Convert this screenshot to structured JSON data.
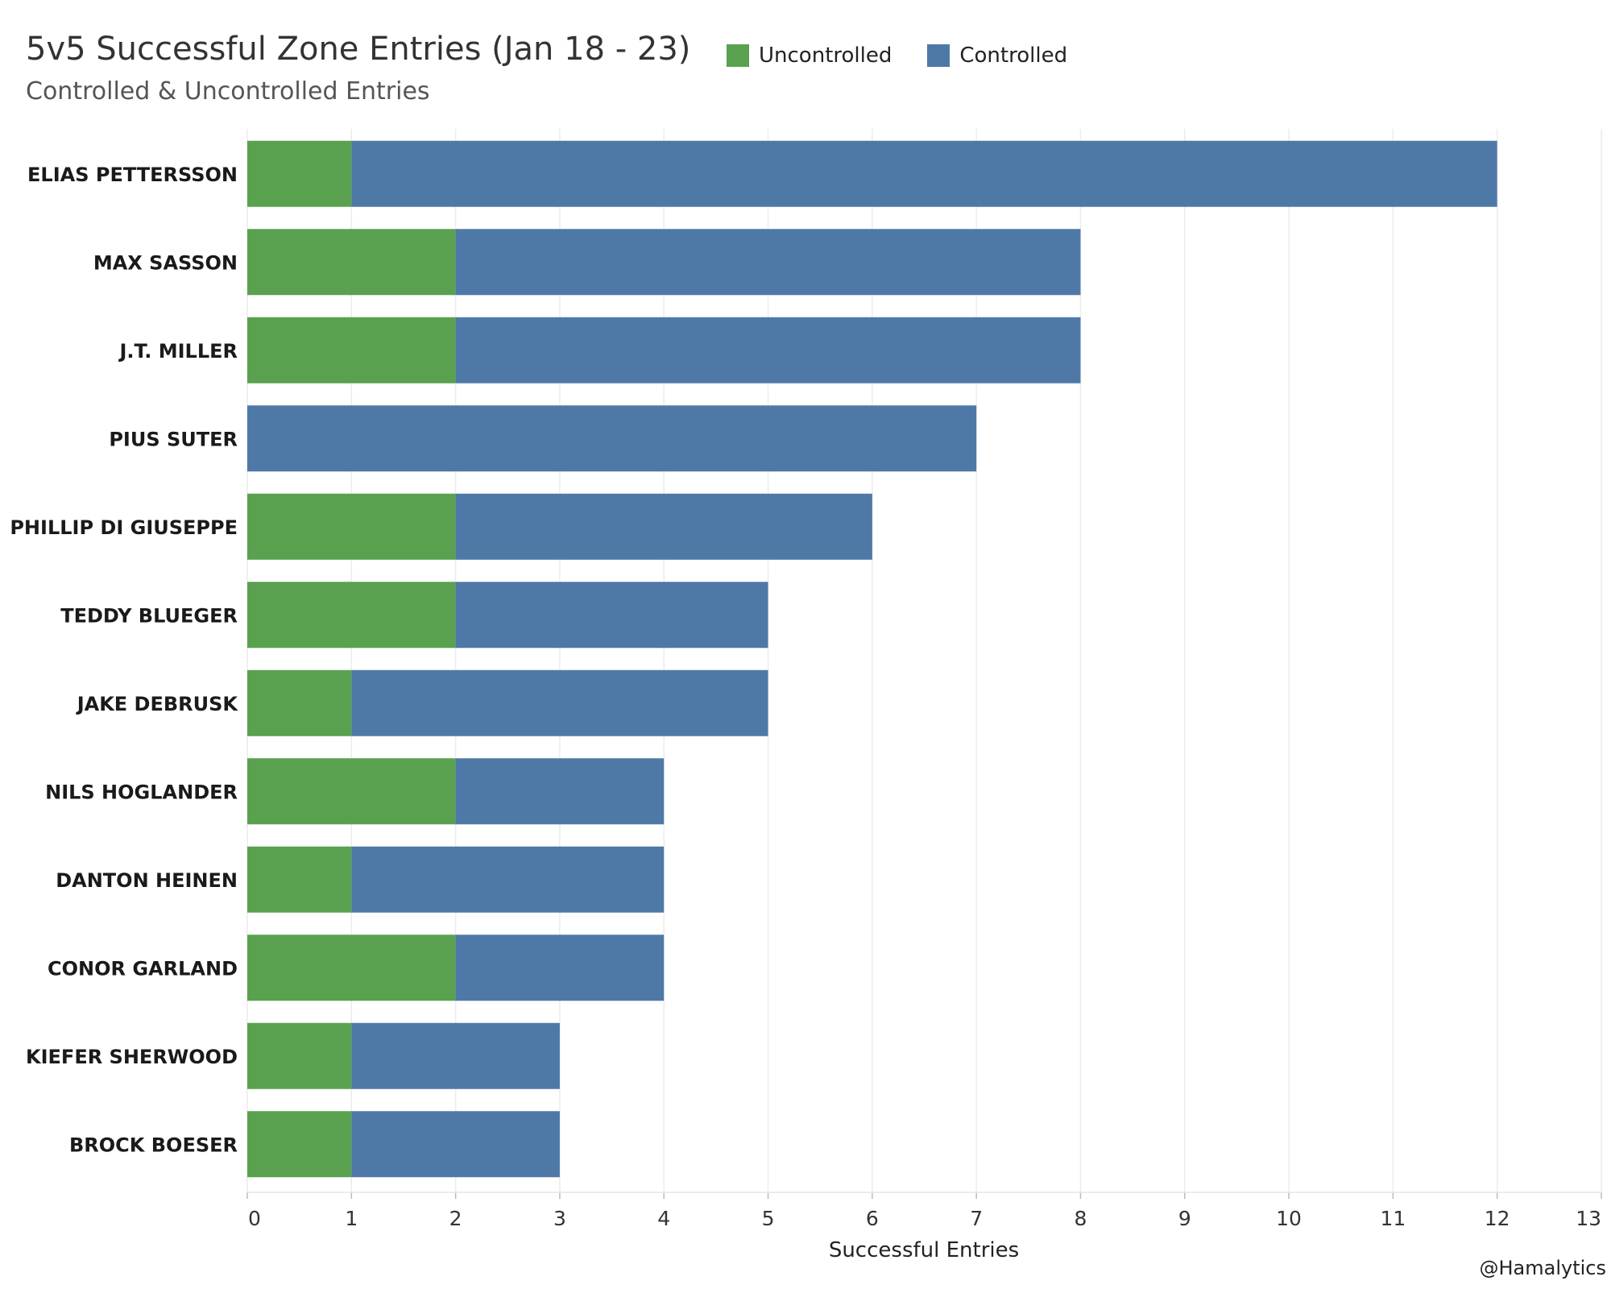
{
  "chart_data": {
    "type": "bar",
    "orientation": "horizontal",
    "stacked": true,
    "title": "5v5 Successful Zone Entries (Jan 18 - 23)",
    "subtitle": "Controlled & Uncontrolled Entries",
    "xlabel": "Successful Entries",
    "ylabel": "",
    "xlim": [
      0,
      13
    ],
    "xticks": [
      0,
      1,
      2,
      3,
      4,
      5,
      6,
      7,
      8,
      9,
      10,
      11,
      12,
      13
    ],
    "grid": "vertical",
    "legend_position": "top",
    "categories": [
      "ELIAS PETTERSSON",
      "MAX SASSON",
      "J.T. MILLER",
      "PIUS SUTER",
      "PHILLIP DI GIUSEPPE",
      "TEDDY BLUEGER",
      "JAKE DEBRUSK",
      "NILS HOGLANDER",
      "DANTON HEINEN",
      "CONOR GARLAND",
      "KIEFER SHERWOOD",
      "BROCK BOESER"
    ],
    "series": [
      {
        "name": "Uncontrolled",
        "color": "#59a14f",
        "values": [
          1,
          2,
          2,
          0,
          2,
          2,
          1,
          2,
          1,
          2,
          1,
          1
        ]
      },
      {
        "name": "Controlled",
        "color": "#4e79a7",
        "values": [
          11,
          6,
          6,
          7,
          4,
          3,
          4,
          2,
          3,
          2,
          2,
          2
        ]
      }
    ]
  },
  "credit": "@Hamalytics"
}
